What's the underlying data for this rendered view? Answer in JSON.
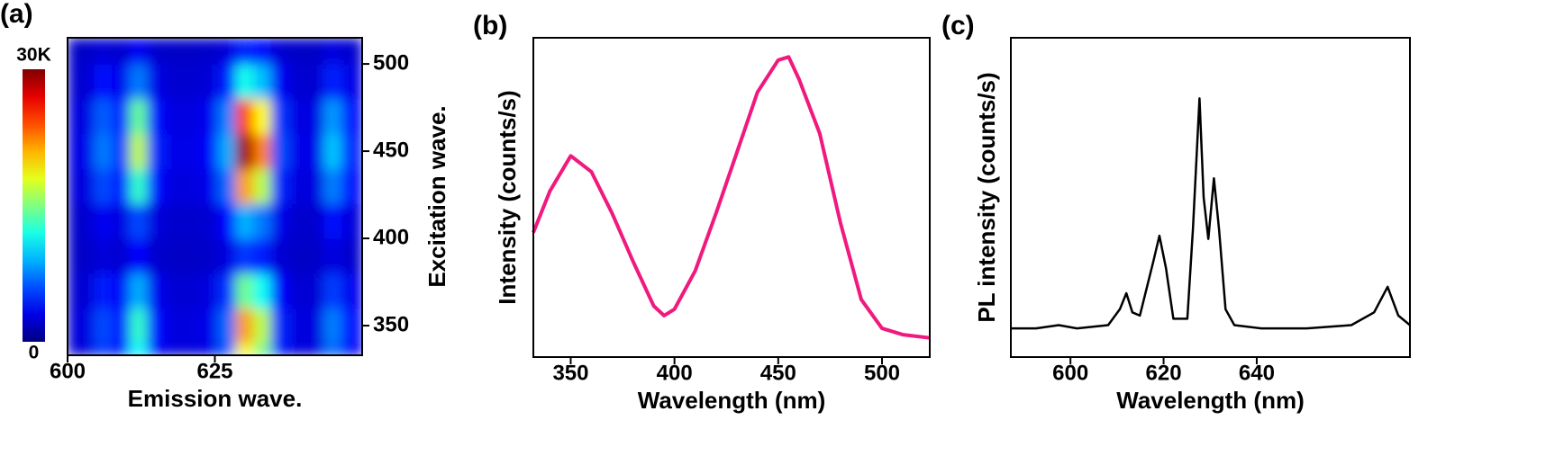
{
  "chart_data": [
    {
      "type": "heatmap",
      "panel_label": "(a)",
      "x_label": "Emission wave.",
      "y_label": "Excitation wave.",
      "y_axis_side": "right",
      "x": [
        600,
        603,
        606,
        609,
        612,
        615,
        618,
        621,
        624,
        627,
        630,
        633,
        636,
        639,
        642,
        645,
        648
      ],
      "y": [
        330,
        350,
        370,
        390,
        410,
        430,
        450,
        470,
        490,
        510
      ],
      "z": [
        [
          2500,
          2700,
          5400,
          4000,
          11200,
          3700,
          2700,
          2700,
          3000,
          6200,
          18800,
          14600,
          4500,
          2700,
          2700,
          6700,
          3700
        ],
        [
          2600,
          2800,
          5900,
          4400,
          12800,
          4000,
          2800,
          2800,
          3200,
          6900,
          21600,
          16700,
          4900,
          2800,
          2800,
          7500,
          4000
        ],
        [
          2400,
          2500,
          4500,
          3500,
          8900,
          3300,
          2500,
          2500,
          2800,
          5200,
          14600,
          11500,
          3900,
          2500,
          2500,
          5500,
          3300
        ],
        [
          2100,
          2100,
          2700,
          2400,
          3800,
          2300,
          2100,
          2100,
          2200,
          2800,
          5400,
          4500,
          2500,
          2100,
          2100,
          2900,
          2300
        ],
        [
          2200,
          2300,
          3400,
          2800,
          5900,
          2700,
          2300,
          2300,
          2400,
          3800,
          9000,
          7300,
          3100,
          2300,
          2300,
          4000,
          2700
        ],
        [
          2600,
          2800,
          5900,
          4400,
          12800,
          4000,
          2800,
          2800,
          3200,
          6900,
          21600,
          16700,
          4900,
          2800,
          2800,
          7500,
          4000
        ],
        [
          2800,
          3100,
          7400,
          5300,
          16900,
          4700,
          3100,
          3100,
          3600,
          8800,
          29200,
          22400,
          6100,
          3100,
          3100,
          9600,
          4700
        ],
        [
          2700,
          2900,
          6500,
          4700,
          14300,
          4200,
          2900,
          2900,
          3300,
          7600,
          24400,
          18800,
          5400,
          2900,
          2900,
          8300,
          4200
        ],
        [
          2300,
          2400,
          4000,
          3200,
          7400,
          3000,
          2400,
          2400,
          2600,
          4500,
          11800,
          9400,
          3500,
          2400,
          2400,
          4700,
          3000
        ],
        [
          2100,
          2100,
          2600,
          2300,
          3500,
          2300,
          2100,
          2100,
          2200,
          2700,
          4800,
          4100,
          2400,
          2100,
          2100,
          2800,
          2300
        ]
      ],
      "xlim": [
        600,
        650
      ],
      "ylim": [
        333,
        515
      ],
      "xticks": [
        600,
        625
      ],
      "yticks": [
        350,
        400,
        450,
        500
      ],
      "colormap": "jet",
      "colorbar": {
        "lim": [
          0,
          30000
        ],
        "ticks": [
          0,
          {
            "value": 30000,
            "label": "30K"
          }
        ]
      }
    },
    {
      "type": "line",
      "panel_label": "(b)",
      "x_label": "Wavelength (nm)",
      "y_label": "Intensity (counts/s)",
      "x": [
        332,
        340,
        350,
        360,
        370,
        380,
        390,
        395,
        400,
        410,
        420,
        430,
        440,
        450,
        455,
        460,
        470,
        480,
        490,
        500,
        510,
        523
      ],
      "series": [
        {
          "color": "#f0197d",
          "line_width": 4,
          "values": [
            0.39,
            0.52,
            0.63,
            0.58,
            0.45,
            0.3,
            0.16,
            0.13,
            0.15,
            0.27,
            0.45,
            0.64,
            0.83,
            0.93,
            0.94,
            0.87,
            0.7,
            0.42,
            0.18,
            0.09,
            0.07,
            0.06
          ]
        }
      ],
      "xlim": [
        332,
        523
      ],
      "ylim": [
        0,
        1
      ],
      "xticks": [
        350,
        400,
        450,
        500
      ]
    },
    {
      "type": "line",
      "panel_label": "(c)",
      "x_label": "Wavelength (nm)",
      "y_label": "PL intensity (counts/s)",
      "x": [
        587.2,
        592.6,
        597.5,
        601.4,
        608.1,
        610.6,
        612.0,
        613.3,
        614.9,
        617.8,
        619.1,
        620.5,
        622.1,
        625.1,
        626.3,
        627.7,
        628.6,
        629.6,
        630.8,
        631.9,
        633.3,
        635.2,
        641.0,
        650.7,
        660.3,
        665.2,
        668.1,
        670.4,
        672.9
      ],
      "series": [
        {
          "color": "#000000",
          "line_width": 2.5,
          "values": [
            0.09,
            0.09,
            0.1,
            0.09,
            0.1,
            0.15,
            0.2,
            0.14,
            0.13,
            0.3,
            0.38,
            0.28,
            0.12,
            0.12,
            0.4,
            0.81,
            0.5,
            0.37,
            0.56,
            0.4,
            0.15,
            0.1,
            0.09,
            0.09,
            0.1,
            0.14,
            0.22,
            0.13,
            0.1
          ]
        }
      ],
      "xlim": [
        587.2,
        672.9
      ],
      "ylim": [
        0,
        1
      ],
      "xticks": [
        600,
        620,
        640
      ]
    }
  ]
}
